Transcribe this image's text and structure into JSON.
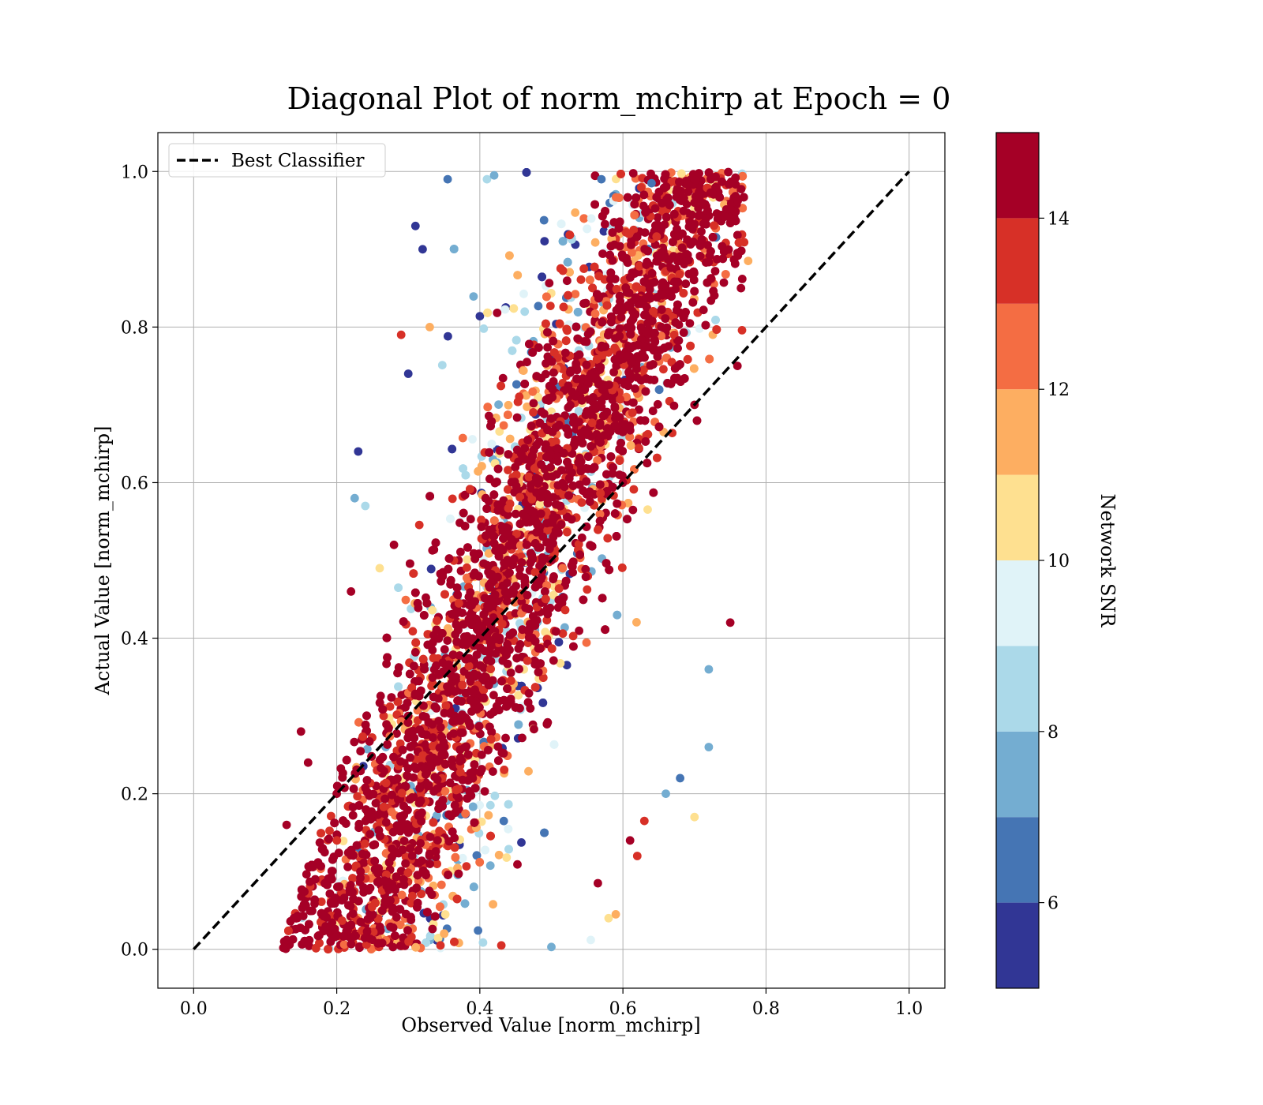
{
  "chart_data": {
    "type": "scatter",
    "title": "Diagonal Plot of norm_mchirp at Epoch = 0",
    "xlabel": "Observed Value [norm_mchirp]",
    "ylabel": "Actual Value [norm_mchirp]",
    "xlim": [
      -0.05,
      1.05
    ],
    "ylim": [
      -0.05,
      1.05
    ],
    "xticks": [
      "0.0",
      "0.2",
      "0.4",
      "0.6",
      "0.8",
      "1.0"
    ],
    "yticks": [
      "0.0",
      "0.2",
      "0.4",
      "0.6",
      "0.8",
      "1.0"
    ],
    "grid": true,
    "legend": {
      "placement": "upper-left",
      "entries": [
        "Best Classifier"
      ]
    },
    "reference_line": {
      "name": "Best Classifier",
      "style": "dashed",
      "color": "#000000",
      "x": [
        0.0,
        1.0
      ],
      "y": [
        0.0,
        1.0
      ]
    },
    "colorbar": {
      "label": "Network SNR",
      "range": [
        5,
        15
      ],
      "ticks": [
        "6",
        "8",
        "10",
        "12",
        "14"
      ],
      "tick_values": [
        6,
        8,
        10,
        12,
        14
      ],
      "bins": [
        5,
        6,
        7,
        8,
        9,
        10,
        11,
        12,
        13,
        14,
        15
      ],
      "colors": [
        "#313695",
        "#4575b4",
        "#74add1",
        "#abd9e9",
        "#e0f3f8",
        "#fee090",
        "#fdae61",
        "#f46d43",
        "#d73027",
        "#a50026"
      ]
    },
    "scatter_summary": {
      "x_range": [
        0.13,
        0.77
      ],
      "y_range": [
        0.0,
        1.0
      ],
      "note_trend": "points cluster along the diagonal; low-SNR points scatter toward upper-left and lower-right"
    },
    "points": [
      {
        "x": 0.13,
        "y": 0.012,
        "snr": 15
      },
      {
        "x": 0.14,
        "y": 0.04,
        "snr": 15
      },
      {
        "x": 0.15,
        "y": 0.28,
        "snr": 15
      },
      {
        "x": 0.16,
        "y": 0.24,
        "snr": 15
      },
      {
        "x": 0.13,
        "y": 0.16,
        "snr": 14
      },
      {
        "x": 0.17,
        "y": 0.09,
        "snr": 14
      },
      {
        "x": 0.2,
        "y": 0.2,
        "snr": 15
      },
      {
        "x": 0.22,
        "y": 0.46,
        "snr": 15
      },
      {
        "x": 0.225,
        "y": 0.58,
        "snr": 7
      },
      {
        "x": 0.23,
        "y": 0.64,
        "snr": 5
      },
      {
        "x": 0.24,
        "y": 0.57,
        "snr": 8
      },
      {
        "x": 0.26,
        "y": 0.49,
        "snr": 10
      },
      {
        "x": 0.28,
        "y": 0.52,
        "snr": 15
      },
      {
        "x": 0.29,
        "y": 0.79,
        "snr": 13
      },
      {
        "x": 0.3,
        "y": 0.74,
        "snr": 5
      },
      {
        "x": 0.31,
        "y": 0.93,
        "snr": 5
      },
      {
        "x": 0.32,
        "y": 0.9,
        "snr": 5
      },
      {
        "x": 0.33,
        "y": 0.8,
        "snr": 11
      },
      {
        "x": 0.355,
        "y": 0.99,
        "snr": 6
      },
      {
        "x": 0.41,
        "y": 0.99,
        "snr": 8
      },
      {
        "x": 0.42,
        "y": 0.995,
        "snr": 7
      },
      {
        "x": 0.5,
        "y": 0.003,
        "snr": 7
      },
      {
        "x": 0.43,
        "y": 0.005,
        "snr": 13
      },
      {
        "x": 0.345,
        "y": 0.005,
        "snr": 13
      },
      {
        "x": 0.555,
        "y": 0.012,
        "snr": 9
      },
      {
        "x": 0.565,
        "y": 0.085,
        "snr": 15
      },
      {
        "x": 0.58,
        "y": 0.04,
        "snr": 10
      },
      {
        "x": 0.66,
        "y": 0.2,
        "snr": 7
      },
      {
        "x": 0.68,
        "y": 0.22,
        "snr": 6
      },
      {
        "x": 0.7,
        "y": 0.17,
        "snr": 10
      },
      {
        "x": 0.72,
        "y": 0.26,
        "snr": 7
      },
      {
        "x": 0.72,
        "y": 0.36,
        "snr": 7
      },
      {
        "x": 0.75,
        "y": 0.42,
        "snr": 15
      },
      {
        "x": 0.76,
        "y": 0.75,
        "snr": 14
      },
      {
        "x": 0.765,
        "y": 0.85,
        "snr": 15
      },
      {
        "x": 0.775,
        "y": 0.885,
        "snr": 11
      },
      {
        "x": 0.7,
        "y": 0.96,
        "snr": 15
      },
      {
        "x": 0.64,
        "y": 0.985,
        "snr": 6
      },
      {
        "x": 0.57,
        "y": 0.99,
        "snr": 6
      },
      {
        "x": 0.6,
        "y": 0.6,
        "snr": 15
      },
      {
        "x": 0.4,
        "y": 0.4,
        "snr": 15
      },
      {
        "x": 0.5,
        "y": 0.5,
        "snr": 15
      },
      {
        "x": 0.7,
        "y": 0.7,
        "snr": 15
      },
      {
        "x": 0.3,
        "y": 0.3,
        "snr": 15
      },
      {
        "x": 0.62,
        "y": 0.12,
        "snr": 13
      },
      {
        "x": 0.63,
        "y": 0.165,
        "snr": 13
      },
      {
        "x": 0.61,
        "y": 0.14,
        "snr": 14
      },
      {
        "x": 0.59,
        "y": 0.045,
        "snr": 11
      }
    ]
  }
}
